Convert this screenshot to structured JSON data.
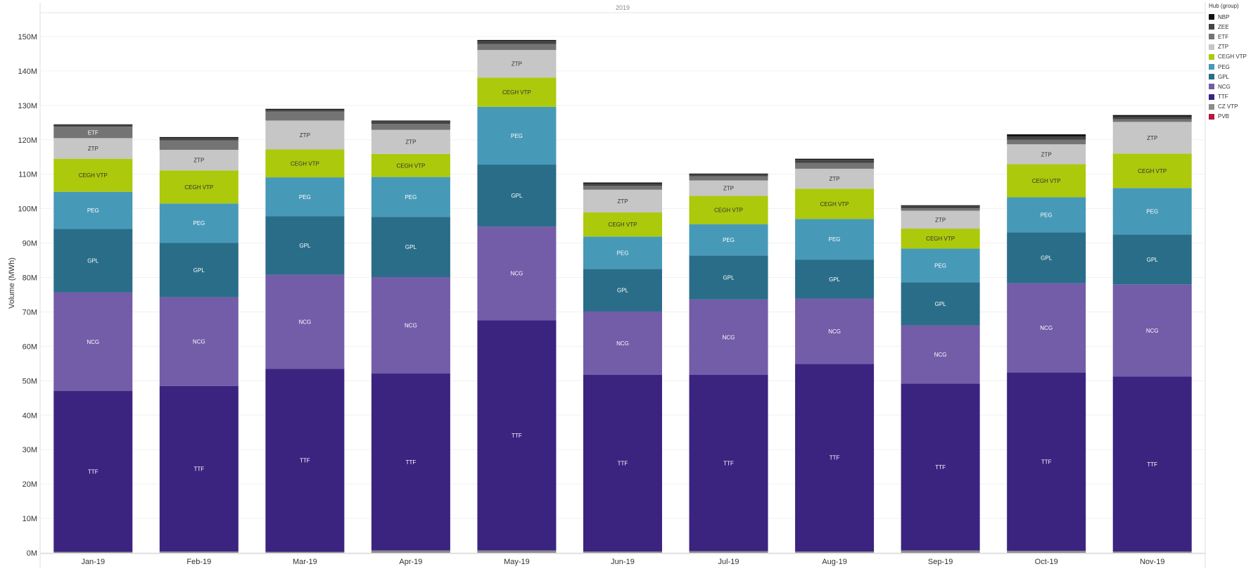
{
  "chart_data": {
    "type": "bar",
    "stacked": true,
    "title": "2019",
    "ylabel": "Volume (MWh)",
    "xlabel": "",
    "ylim": [
      0,
      155000000
    ],
    "yticks": [
      0,
      10000000,
      20000000,
      30000000,
      40000000,
      50000000,
      60000000,
      70000000,
      80000000,
      90000000,
      100000000,
      110000000,
      120000000,
      130000000,
      140000000,
      150000000
    ],
    "ytick_labels": [
      "0M",
      "10M",
      "20M",
      "30M",
      "40M",
      "50M",
      "60M",
      "70M",
      "80M",
      "90M",
      "100M",
      "110M",
      "120M",
      "130M",
      "140M",
      "150M"
    ],
    "grid": true,
    "legend_title": "Hub (group)",
    "legend_position": "right",
    "categories": [
      "Jan-19",
      "Feb-19",
      "Mar-19",
      "Apr-19",
      "May-19",
      "Jun-19",
      "Jul-19",
      "Aug-19",
      "Sep-19",
      "Oct-19",
      "Nov-19"
    ],
    "series": [
      {
        "name": "PVB",
        "color": "#b5173f",
        "values": [
          0,
          0,
          0,
          0,
          0,
          0,
          0,
          0,
          0,
          0,
          0
        ]
      },
      {
        "name": "CZ VTP",
        "color": "#8c8c8c",
        "values": [
          300000,
          400000,
          300000,
          700000,
          700000,
          400000,
          500000,
          400000,
          700000,
          600000,
          400000
        ]
      },
      {
        "name": "TTF",
        "color": "#3b2380",
        "values": [
          46700000,
          48100000,
          53200000,
          51400000,
          66900000,
          51300000,
          51200000,
          54500000,
          48500000,
          51800000,
          50800000
        ]
      },
      {
        "name": "NCG",
        "color": "#735ca8",
        "values": [
          28700000,
          25800000,
          27300000,
          28000000,
          27200000,
          18400000,
          21900000,
          18900000,
          16900000,
          25900000,
          26800000
        ]
      },
      {
        "name": "GPL",
        "color": "#2a6d89",
        "values": [
          18400000,
          15800000,
          17000000,
          17500000,
          18000000,
          12400000,
          12800000,
          11400000,
          12500000,
          14800000,
          14500000
        ]
      },
      {
        "name": "PEG",
        "color": "#4799b8",
        "values": [
          10800000,
          11400000,
          11300000,
          11600000,
          16800000,
          9400000,
          9100000,
          11800000,
          9800000,
          10200000,
          13500000
        ]
      },
      {
        "name": "CEGH VTP",
        "color": "#acc90b",
        "values": [
          9600000,
          9600000,
          8100000,
          6700000,
          8500000,
          7000000,
          8200000,
          8800000,
          5800000,
          9600000,
          10000000
        ]
      },
      {
        "name": "ZTP",
        "color": "#c6c6c6",
        "values": [
          6000000,
          6000000,
          8400000,
          7000000,
          8000000,
          6600000,
          4500000,
          5800000,
          5200000,
          5800000,
          9200000
        ]
      },
      {
        "name": "ETF",
        "color": "#747474",
        "values": [
          3300000,
          2700000,
          2600000,
          1700000,
          1700000,
          1100000,
          1200000,
          1700000,
          700000,
          1300000,
          800000
        ]
      },
      {
        "name": "ZEE",
        "color": "#444444",
        "values": [
          500000,
          700000,
          500000,
          800000,
          900000,
          700000,
          600000,
          900000,
          700000,
          1000000,
          800000
        ]
      },
      {
        "name": "NBP",
        "color": "#111111",
        "values": [
          200000,
          300000,
          300000,
          200000,
          300000,
          300000,
          200000,
          300000,
          200000,
          600000,
          400000
        ]
      }
    ],
    "labeled_series": [
      "TTF",
      "NCG",
      "GPL",
      "PEG",
      "CEGH VTP",
      "ZTP"
    ],
    "extra_labels": [
      {
        "category": "Jan-19",
        "series": "ETF"
      }
    ]
  }
}
